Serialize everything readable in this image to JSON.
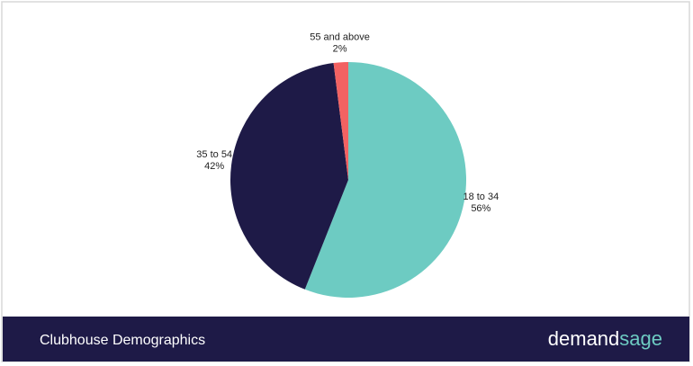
{
  "chart_data": {
    "type": "pie",
    "title": "Clubhouse Demographics",
    "logo": [
      "demand",
      "sage"
    ],
    "categories": [
      "18 to 34",
      "35 to 54",
      "55 and above"
    ],
    "values": [
      56,
      42,
      2
    ],
    "value_labels": [
      "56%",
      "42%",
      "2%"
    ],
    "colors": [
      "#6dcbc2",
      "#1e1a47",
      "#f26262"
    ]
  }
}
